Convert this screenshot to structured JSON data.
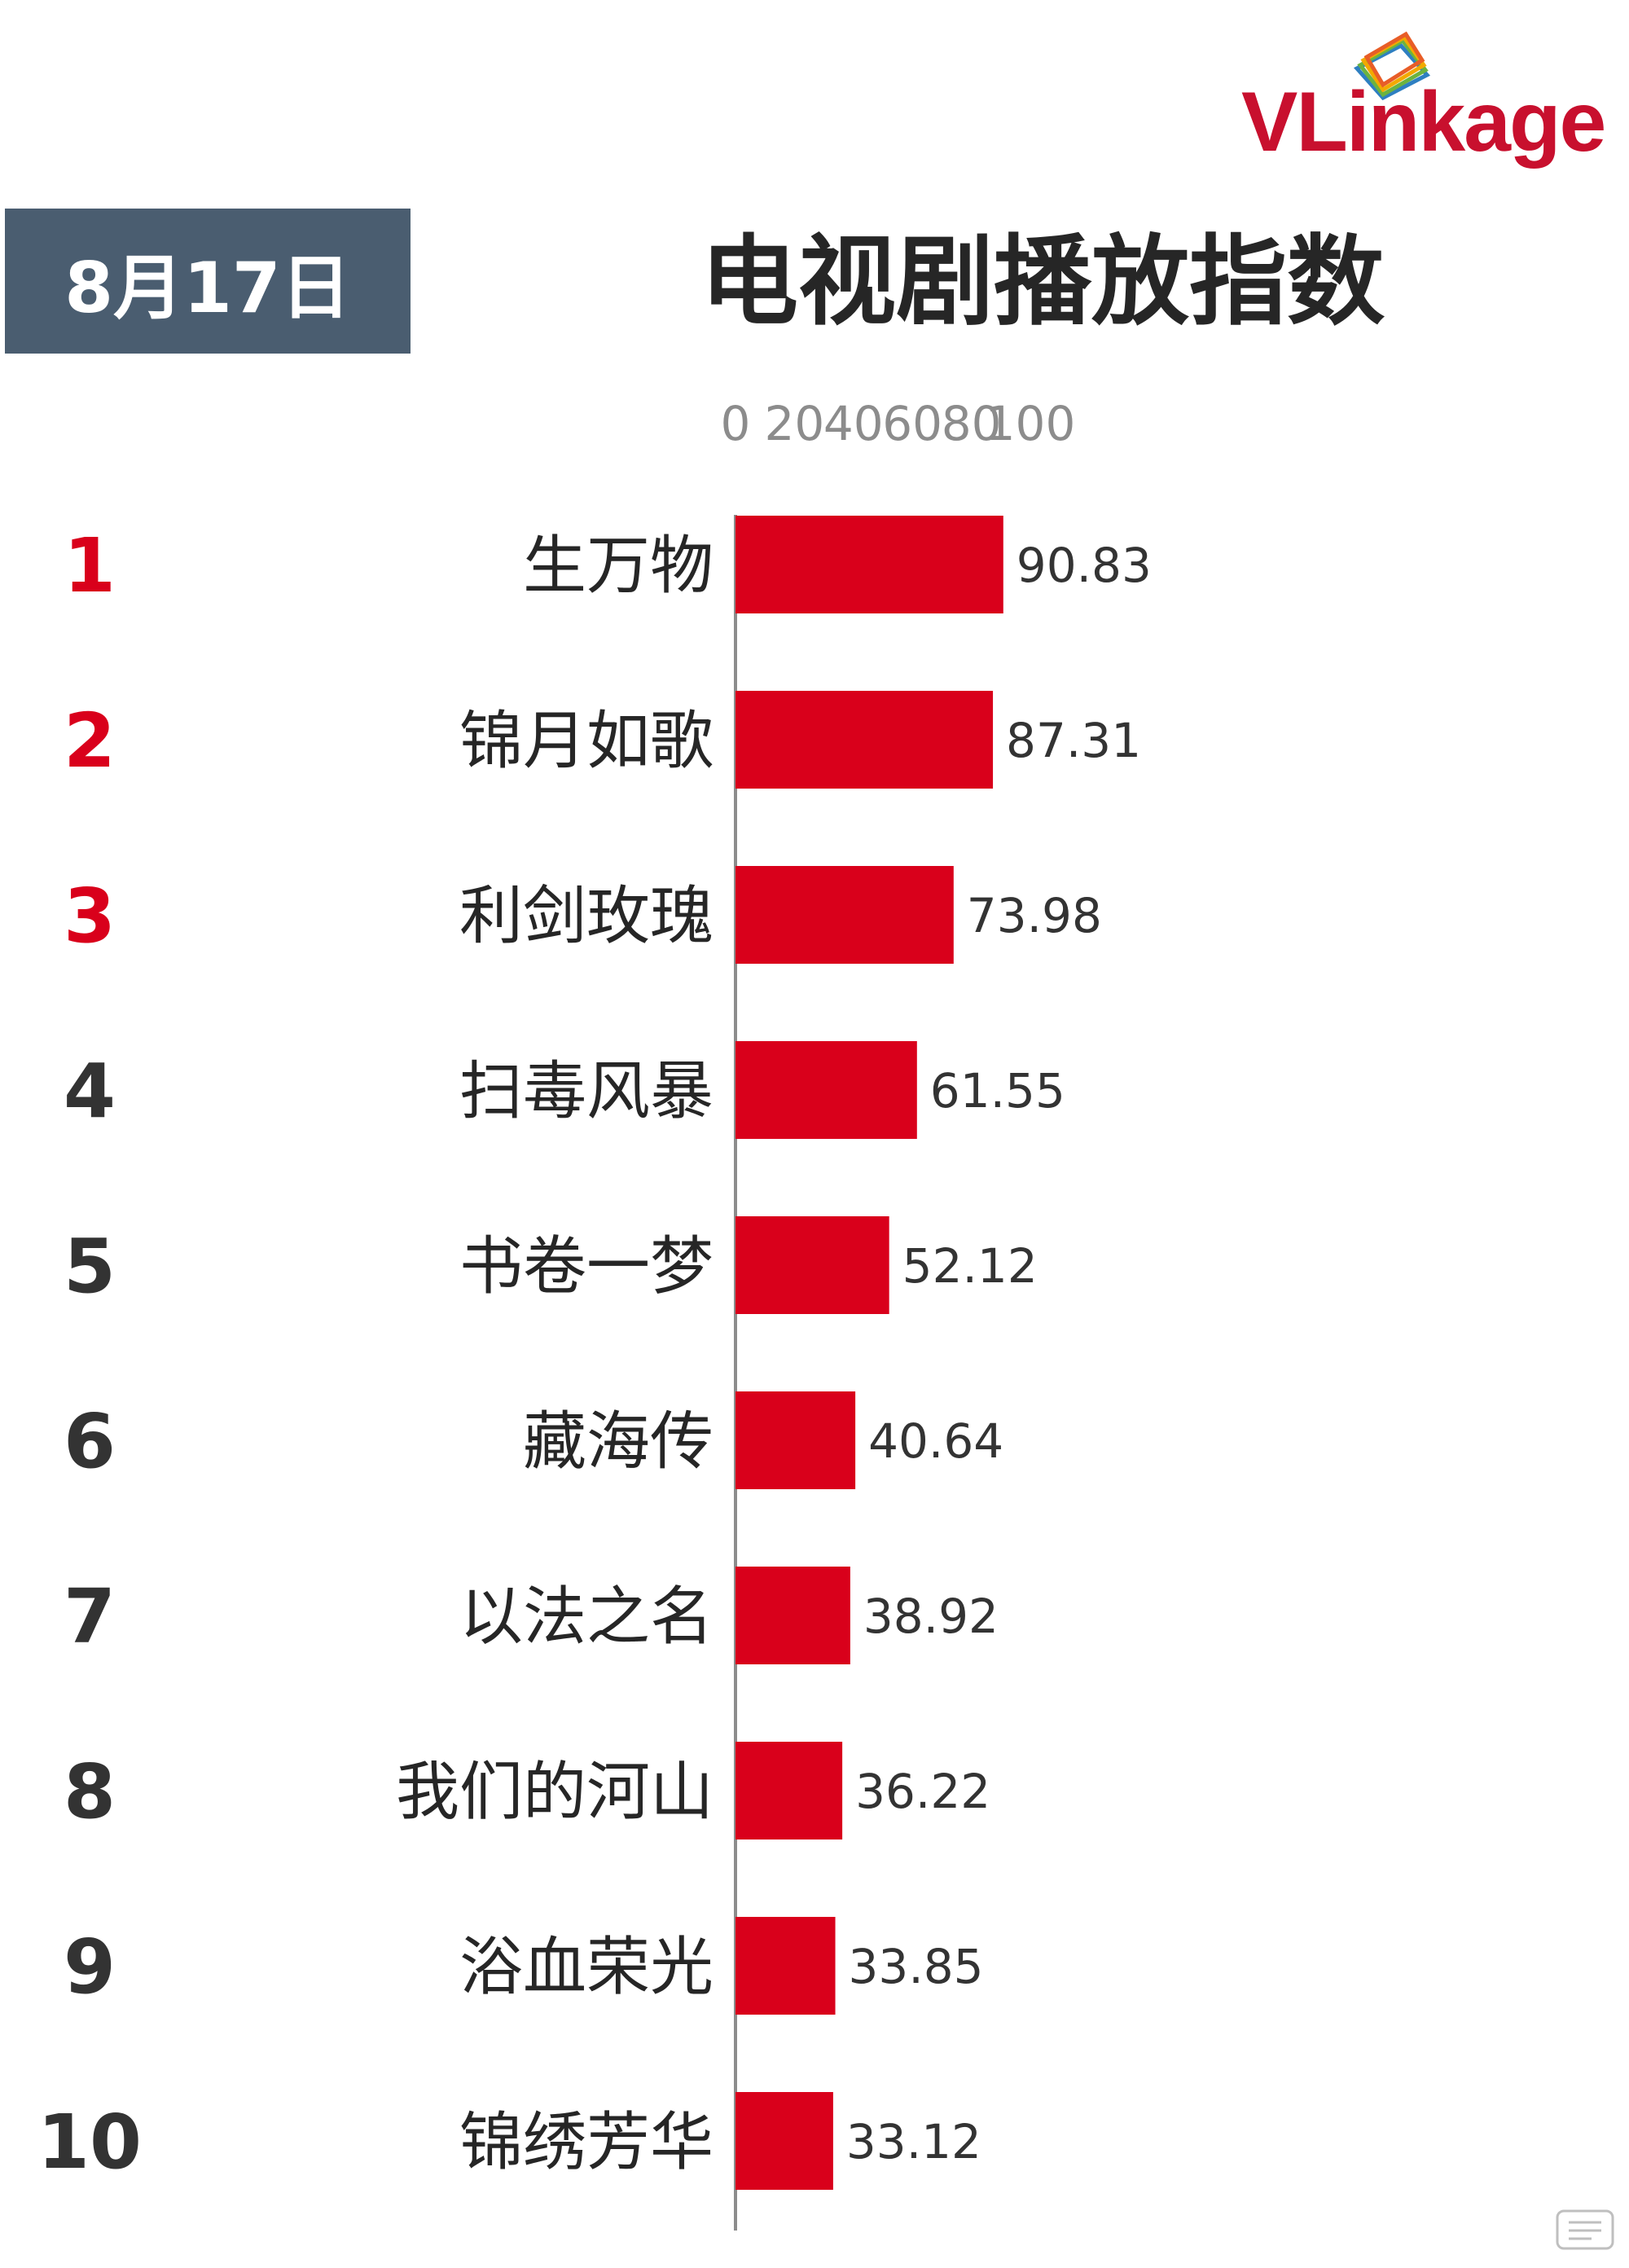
{
  "brand": {
    "logo_text": "VLinkage",
    "accent_color": "#c8102e",
    "icon": "layered-frames-logo-icon"
  },
  "header": {
    "date": "8月17日",
    "badge_color": "#4a5d70"
  },
  "chart_data": {
    "type": "bar",
    "orientation": "horizontal",
    "title": "电视剧播放指数",
    "categories": [
      "生万物",
      "锦月如歌",
      "利剑玫瑰",
      "扫毒风暴",
      "书卷一梦",
      "藏海传",
      "以法之名",
      "我们的河山",
      "浴血荣光",
      "锦绣芳华"
    ],
    "ranks": [
      "1",
      "2",
      "3",
      "4",
      "5",
      "6",
      "7",
      "8",
      "9",
      "10"
    ],
    "values": [
      90.83,
      87.31,
      73.98,
      61.55,
      52.12,
      40.64,
      38.92,
      36.22,
      33.85,
      33.12
    ],
    "value_labels": [
      "90.83",
      "87.31",
      "73.98",
      "61.55",
      "52.12",
      "40.64",
      "38.92",
      "36.22",
      "33.85",
      "33.12"
    ],
    "xticks": [
      0,
      20,
      40,
      60,
      80,
      100
    ],
    "xtick_labels": [
      "0",
      "20",
      "40",
      "60",
      "80",
      "100"
    ],
    "xlim": [
      0,
      100
    ],
    "xaxis_position": "top",
    "grid": false,
    "bar_color": "#d9001b",
    "top_rank_color": "#d9001b",
    "rank_color": "#333333",
    "highlighted_ranks": 3
  }
}
